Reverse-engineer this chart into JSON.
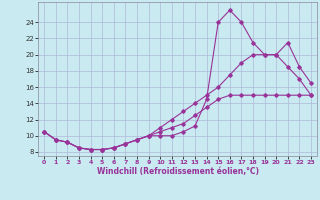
{
  "xlabel": "Windchill (Refroidissement éolien,°C)",
  "background_color": "#c8eaf0",
  "grid_color": "#b0b8d8",
  "line_color": "#993399",
  "xlim": [
    -0.5,
    23.5
  ],
  "ylim": [
    7.5,
    26.5
  ],
  "xticks": [
    0,
    1,
    2,
    3,
    4,
    5,
    6,
    7,
    8,
    9,
    10,
    11,
    12,
    13,
    14,
    15,
    16,
    17,
    18,
    19,
    20,
    21,
    22,
    23
  ],
  "yticks": [
    8,
    10,
    12,
    14,
    16,
    18,
    20,
    22,
    24
  ],
  "line1_x": [
    0,
    1,
    2,
    3,
    4,
    5,
    6,
    7,
    8,
    9,
    10,
    11,
    12,
    13,
    14,
    15,
    16,
    17,
    18,
    19,
    20,
    21,
    22,
    23
  ],
  "line1_y": [
    10.5,
    9.5,
    9.2,
    8.5,
    8.3,
    8.3,
    8.5,
    9.0,
    9.5,
    10.0,
    10.0,
    10.0,
    10.5,
    11.2,
    14.5,
    24.0,
    25.5,
    24.0,
    21.5,
    20.0,
    20.0,
    18.5,
    17.0,
    15.0
  ],
  "line2_x": [
    0,
    1,
    2,
    3,
    4,
    5,
    6,
    7,
    8,
    9,
    10,
    11,
    12,
    13,
    14,
    15,
    16,
    17,
    18,
    19,
    20,
    21,
    22,
    23
  ],
  "line2_y": [
    10.5,
    9.5,
    9.2,
    8.5,
    8.3,
    8.3,
    8.5,
    9.0,
    9.5,
    10.0,
    10.5,
    11.0,
    11.5,
    12.5,
    13.5,
    14.5,
    15.0,
    15.0,
    15.0,
    15.0,
    15.0,
    15.0,
    15.0,
    15.0
  ],
  "line3_x": [
    0,
    1,
    2,
    3,
    4,
    5,
    6,
    7,
    8,
    9,
    10,
    11,
    12,
    13,
    14,
    15,
    16,
    17,
    18,
    19,
    20,
    21,
    22,
    23
  ],
  "line3_y": [
    10.5,
    9.5,
    9.2,
    8.5,
    8.3,
    8.3,
    8.5,
    9.0,
    9.5,
    10.0,
    11.0,
    12.0,
    13.0,
    14.0,
    15.0,
    16.0,
    17.5,
    19.0,
    20.0,
    20.0,
    20.0,
    21.5,
    18.5,
    16.5
  ]
}
